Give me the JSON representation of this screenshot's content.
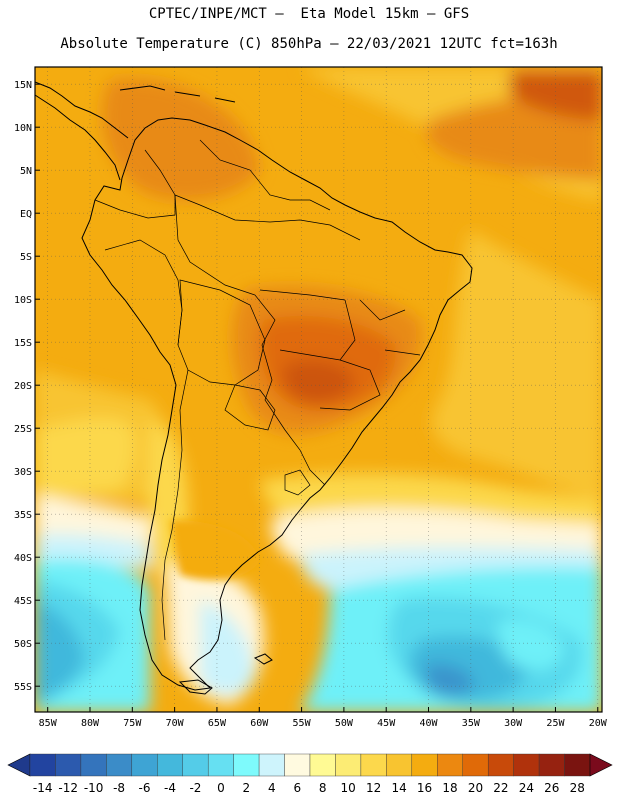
{
  "header": {
    "line1": "CPTEC/INPE/MCT –  Eta Model 15km – GFS",
    "line2": "Absolute Temperature (C) 850hPa – 22/03/2021 12UTC fct=163h"
  },
  "map": {
    "lat_labels": [
      "15N",
      "10N",
      "5N",
      "EQ",
      "5S",
      "10S",
      "15S",
      "20S",
      "25S",
      "30S",
      "35S",
      "40S",
      "45S",
      "50S",
      "55S"
    ],
    "lat_values": [
      15,
      10,
      5,
      0,
      -5,
      -10,
      -15,
      -20,
      -25,
      -30,
      -35,
      -40,
      -45,
      -50,
      -55
    ],
    "lon_labels": [
      "85W",
      "80W",
      "75W",
      "70W",
      "65W",
      "60W",
      "55W",
      "50W",
      "45W",
      "40W",
      "35W",
      "30W",
      "25W",
      "20W"
    ],
    "lon_values": [
      -85,
      -80,
      -75,
      -70,
      -65,
      -60,
      -55,
      -50,
      -45,
      -40,
      -35,
      -30,
      -25,
      -20
    ],
    "lon_range": [
      -86.5,
      -19.5
    ],
    "lat_range": [
      -58,
      17
    ],
    "colors": {
      "background": "#f4ac10",
      "warm": "#e88a12",
      "hot": "#e06a08",
      "hotter": "#cc5510",
      "mild": "#fcd84c",
      "cream": "#fff6dc",
      "pale_blue": "#cbf3fc",
      "cyan": "#6ef0f8",
      "cyan_mid": "#56d8ec",
      "blue": "#3fb8dc",
      "blue_dark": "#3b94cc"
    }
  },
  "colorbar": {
    "labels": [
      "-14",
      "-12",
      "-10",
      "-8",
      "-6",
      "-4",
      "-2",
      "0",
      "2",
      "4",
      "6",
      "8",
      "10",
      "12",
      "14",
      "16",
      "18",
      "20",
      "22",
      "24",
      "26",
      "28"
    ],
    "under_color": "#1f3a8c",
    "over_color": "#7a0a1c",
    "colors": [
      "#2244a0",
      "#2c5aae",
      "#3474bc",
      "#3b8cc8",
      "#3ea4d4",
      "#44b8dc",
      "#54cce8",
      "#66e0f2",
      "#7efafc",
      "#cef4fc",
      "#fffae0",
      "#fffa94",
      "#fcec74",
      "#fcd84c",
      "#f8c430",
      "#f4ac10",
      "#ec8810",
      "#e06a08",
      "#c84a0a",
      "#b0320c",
      "#962210",
      "#7a1410"
    ]
  }
}
